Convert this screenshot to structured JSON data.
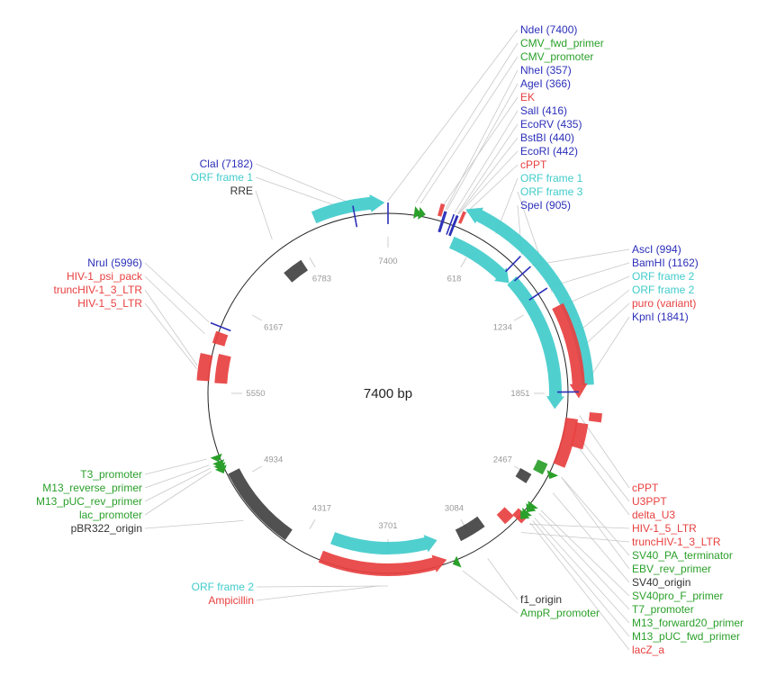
{
  "plasmid": {
    "total_length": 7400,
    "center_label": "7400 bp",
    "ticks": [
      "7400",
      "618",
      "1234",
      "1851",
      "2467",
      "3084",
      "3701",
      "4317",
      "4934",
      "5550",
      "6167",
      "6783"
    ],
    "colors": {
      "enzyme": "#2b2fb8",
      "primer": "#2aa02a",
      "feature": "#e84040",
      "orf": "#41cbcb",
      "misc": "#333333"
    },
    "features": [
      {
        "name": "ORF frame 1",
        "type": "orf",
        "start": 6930,
        "end": 7380,
        "strand": 1
      },
      {
        "name": "ORF frame 2 (main)",
        "type": "orf",
        "start": 470,
        "end": 1800,
        "strand": -1
      },
      {
        "name": "ORF frame 1 (inner)",
        "type": "orf",
        "start": 470,
        "end": 980,
        "strand": 1
      },
      {
        "name": "ORF frame 3",
        "type": "orf",
        "start": 980,
        "end": 1960,
        "strand": 1
      },
      {
        "name": "ORF frame 2 (bottom)",
        "type": "orf",
        "start": 3320,
        "end": 4130,
        "strand": -1
      },
      {
        "name": "Ampicillin",
        "type": "feature",
        "start": 3300,
        "end": 4160,
        "strand": -1
      },
      {
        "name": "puro",
        "type": "feature",
        "start": 1290,
        "end": 1880,
        "strand": 1
      },
      {
        "name": "RRE",
        "type": "misc",
        "start": 6560,
        "end": 6720,
        "strand": 0
      },
      {
        "name": "pBR322_origin",
        "type": "misc",
        "start": 4420,
        "end": 5000,
        "strand": 0
      },
      {
        "name": "f1_origin",
        "type": "misc",
        "start": 2960,
        "end": 3160,
        "strand": 0
      },
      {
        "name": "SV40_origin",
        "type": "misc",
        "start": 2455,
        "end": 2530,
        "strand": 0
      },
      {
        "name": "EBV_rev_primer",
        "type": "primer",
        "start": 2340,
        "end": 2420,
        "strand": 0
      },
      {
        "name": "cPPT",
        "type": "feature",
        "start": 1960,
        "end": 2010,
        "strand": 0
      },
      {
        "name": "U3PPT",
        "type": "feature",
        "start": 2030,
        "end": 2180,
        "strand": 0
      },
      {
        "name": "delta_U3",
        "type": "feature",
        "start": 2010,
        "end": 2320,
        "strand": 0
      },
      {
        "name": "HIV-1_5_LTR",
        "type": "feature",
        "start": 2700,
        "end": 2760,
        "strand": 0
      },
      {
        "name": "truncHIV-1_3_LTR",
        "type": "feature",
        "start": 2760,
        "end": 2840,
        "strand": 0
      },
      {
        "name": "HIV-1_psi_pack",
        "type": "feature",
        "start": 5880,
        "end": 5960,
        "strand": 0
      },
      {
        "name": "truncHIV-1_3_LTR (left)",
        "type": "feature",
        "start": 5620,
        "end": 5820,
        "strand": 0
      },
      {
        "name": "HIV-1_5_LTR (left)",
        "type": "feature",
        "start": 5630,
        "end": 5800,
        "strand": 0
      },
      {
        "name": "EK",
        "type": "feature",
        "start": 320,
        "end": 345,
        "strand": 0
      },
      {
        "name": "cPPT (top)",
        "type": "feature",
        "start": 460,
        "end": 480,
        "strand": 0
      }
    ],
    "primers": [
      {
        "name": "CMV_fwd_primer",
        "pos": 170,
        "strand": 1
      },
      {
        "name": "CMV_promoter",
        "pos": 200,
        "strand": 1
      },
      {
        "name": "T3_promoter",
        "pos": 5140,
        "strand": -1
      },
      {
        "name": "M13_reverse_primer",
        "pos": 5100,
        "strand": -1
      },
      {
        "name": "M13_pUC_rev_primer",
        "pos": 5080,
        "strand": -1
      },
      {
        "name": "lac_promoter",
        "pos": 5060,
        "strand": -1
      },
      {
        "name": "SV40_PA_terminator",
        "pos": 2380,
        "strand": 1
      },
      {
        "name": "SV40pro_F_primer",
        "pos": 2620,
        "strand": 1
      },
      {
        "name": "T7_promoter",
        "pos": 2640,
        "strand": 1
      },
      {
        "name": "M13_forward20_primer",
        "pos": 2680,
        "strand": 1
      },
      {
        "name": "M13_pUC_fwd_primer",
        "pos": 2700,
        "strand": 1
      },
      {
        "name": "AmpR_promoter",
        "pos": 3230,
        "strand": 1
      }
    ],
    "enzymes": [
      {
        "name": "NdeI",
        "pos": 7400
      },
      {
        "name": "NheI",
        "pos": 357
      },
      {
        "name": "AgeI",
        "pos": 366
      },
      {
        "name": "SalI",
        "pos": 416
      },
      {
        "name": "EcoRV",
        "pos": 435
      },
      {
        "name": "BstBI",
        "pos": 440
      },
      {
        "name": "EcoRI",
        "pos": 442
      },
      {
        "name": "SpeI",
        "pos": 905
      },
      {
        "name": "AscI",
        "pos": 994
      },
      {
        "name": "BamHI",
        "pos": 1162
      },
      {
        "name": "KpnI",
        "pos": 1841
      },
      {
        "name": "NruI",
        "pos": 5996
      },
      {
        "name": "ClaI",
        "pos": 7182
      }
    ]
  },
  "labels": {
    "top_right": [
      {
        "text": "NdeI (7400)",
        "type": "enzyme"
      },
      {
        "text": "CMV_fwd_primer",
        "type": "primer"
      },
      {
        "text": "CMV_promoter",
        "type": "primer"
      },
      {
        "text": "NheI (357)",
        "type": "enzyme"
      },
      {
        "text": "AgeI (366)",
        "type": "enzyme"
      },
      {
        "text": "EK",
        "type": "feature"
      },
      {
        "text": "SalI (416)",
        "type": "enzyme"
      },
      {
        "text": "EcoRV (435)",
        "type": "enzyme"
      },
      {
        "text": "BstBI (440)",
        "type": "enzyme"
      },
      {
        "text": "EcoRI (442)",
        "type": "enzyme"
      },
      {
        "text": "cPPT",
        "type": "feature"
      },
      {
        "text": "ORF frame 1",
        "type": "orf"
      },
      {
        "text": "ORF frame 3",
        "type": "orf"
      },
      {
        "text": "SpeI (905)",
        "type": "enzyme"
      }
    ],
    "mid_right": [
      {
        "text": "AscI (994)",
        "type": "enzyme"
      },
      {
        "text": "BamHI (1162)",
        "type": "enzyme"
      },
      {
        "text": "ORF frame 2",
        "type": "orf"
      },
      {
        "text": "ORF frame 2",
        "type": "orf"
      },
      {
        "text": "puro (variant)",
        "type": "feature"
      },
      {
        "text": "KpnI (1841)",
        "type": "enzyme"
      }
    ],
    "bottom_right": [
      {
        "text": "cPPT",
        "type": "feature"
      },
      {
        "text": "U3PPT",
        "type": "feature"
      },
      {
        "text": "delta_U3",
        "type": "feature"
      },
      {
        "text": "HIV-1_5_LTR",
        "type": "feature"
      },
      {
        "text": "truncHIV-1_3_LTR",
        "type": "feature"
      },
      {
        "text": "SV40_PA_terminator",
        "type": "primer"
      },
      {
        "text": "EBV_rev_primer",
        "type": "primer"
      },
      {
        "text": "SV40_origin",
        "type": "misc"
      },
      {
        "text": "SV40pro_F_primer",
        "type": "primer"
      },
      {
        "text": "T7_promoter",
        "type": "primer"
      },
      {
        "text": "M13_forward20_primer",
        "type": "primer"
      },
      {
        "text": "M13_pUC_fwd_primer",
        "type": "primer"
      },
      {
        "text": "lacZ_a",
        "type": "feature"
      }
    ],
    "bottom_center": [
      {
        "text": "f1_origin",
        "type": "misc"
      },
      {
        "text": "AmpR_promoter",
        "type": "primer"
      }
    ],
    "top_left": [
      {
        "text": "ClaI (7182)",
        "type": "enzyme"
      },
      {
        "text": "ORF frame 1",
        "type": "orf"
      },
      {
        "text": "RRE",
        "type": "misc"
      }
    ],
    "mid_left": [
      {
        "text": "NruI (5996)",
        "type": "enzyme"
      },
      {
        "text": "HIV-1_psi_pack",
        "type": "feature"
      },
      {
        "text": "truncHIV-1_3_LTR",
        "type": "feature"
      },
      {
        "text": "HIV-1_5_LTR",
        "type": "feature"
      }
    ],
    "bottom_left": [
      {
        "text": "T3_promoter",
        "type": "primer"
      },
      {
        "text": "M13_reverse_primer",
        "type": "primer"
      },
      {
        "text": "M13_pUC_rev_primer",
        "type": "primer"
      },
      {
        "text": "lac_promoter",
        "type": "primer"
      },
      {
        "text": "pBR322_origin",
        "type": "misc"
      }
    ],
    "lower_left": [
      {
        "text": "ORF frame 2",
        "type": "orf"
      },
      {
        "text": "Ampicillin",
        "type": "feature"
      }
    ]
  }
}
